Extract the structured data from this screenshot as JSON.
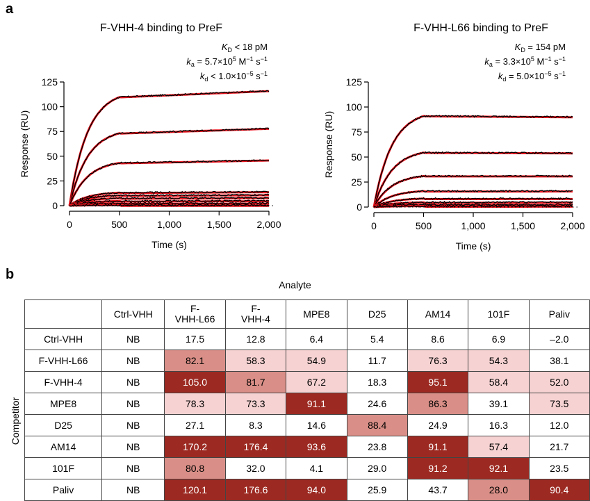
{
  "panels": {
    "a": "a",
    "b": "b"
  },
  "chart_data": [
    {
      "type": "line",
      "title": "F-VHH-4 binding to PreF",
      "xlabel": "Time (s)",
      "ylabel": "Response (RU)",
      "xlim": [
        0,
        2000
      ],
      "ylim": [
        0,
        125
      ],
      "xticks": [
        0,
        500,
        1000,
        1500,
        2000
      ],
      "xtick_labels": [
        "0",
        "500",
        "1,000",
        "1,500",
        "2,000"
      ],
      "yticks": [
        0,
        25,
        50,
        75,
        100,
        125
      ],
      "annotations": {
        "kd_eq": {
          "sym": "K",
          "sub": "D",
          "rest": " < 18 pM"
        },
        "ka": {
          "sym": "k",
          "sub": "a",
          "rest": " = 5.7×10",
          "exp": "5",
          "unit": " M",
          "unit_exp": "−1",
          "unit2": " s",
          "unit2_exp": "−1"
        },
        "kdiss": {
          "sym": "k",
          "sub": "d",
          "rest": " < 1.0×10",
          "exp": "−5",
          "unit2": " s",
          "unit2_exp": "−1"
        }
      },
      "association_end": 500,
      "series": [
        {
          "plateau": 117,
          "end": 116,
          "tau": 180
        },
        {
          "plateau": 78,
          "end": 78,
          "tau": 180
        },
        {
          "plateau": 46,
          "end": 46,
          "tau": 180
        },
        {
          "plateau": 14,
          "end": 14,
          "tau": 180
        },
        {
          "plateau": 11,
          "end": 11,
          "tau": 180
        },
        {
          "plateau": 8,
          "end": 8,
          "tau": 180
        },
        {
          "plateau": 5,
          "end": 5,
          "tau": 180
        },
        {
          "plateau": 2.5,
          "end": 2.5,
          "tau": 180
        },
        {
          "plateau": 0.5,
          "end": 0.5,
          "tau": 180
        }
      ],
      "colors": {
        "data": "#000000",
        "fit": "#e8141e"
      }
    },
    {
      "type": "line",
      "title": "F-VHH-L66 binding to PreF",
      "xlabel": "Time (s)",
      "ylabel": "Response (RU)",
      "xlim": [
        0,
        2000
      ],
      "ylim": [
        0,
        125
      ],
      "xticks": [
        0,
        500,
        1000,
        1500,
        2000
      ],
      "xtick_labels": [
        "0",
        "500",
        "1,000",
        "1,500",
        "2,000"
      ],
      "yticks": [
        0,
        25,
        50,
        75,
        100,
        125
      ],
      "annotations": {
        "kd_eq": {
          "sym": "K",
          "sub": "D",
          "rest": " = 154 pM"
        },
        "ka": {
          "sym": "k",
          "sub": "a",
          "rest": " = 3.3×10",
          "exp": "5",
          "unit": " M",
          "unit_exp": "−1",
          "unit2": " s",
          "unit2_exp": "−1"
        },
        "kdiss": {
          "sym": "k",
          "sub": "d",
          "rest": " = 5.0×10",
          "exp": "−5",
          "unit2": " s",
          "unit2_exp": "−1"
        }
      },
      "association_end": 500,
      "series": [
        {
          "plateau": 97,
          "end": 90,
          "tau": 180
        },
        {
          "plateau": 58,
          "end": 54,
          "tau": 180
        },
        {
          "plateau": 33,
          "end": 31,
          "tau": 180
        },
        {
          "plateau": 17,
          "end": 16,
          "tau": 180
        },
        {
          "plateau": 9,
          "end": 8.5,
          "tau": 180
        },
        {
          "plateau": 5,
          "end": 5,
          "tau": 180
        },
        {
          "plateau": 2.5,
          "end": 2.5,
          "tau": 180
        },
        {
          "plateau": 1,
          "end": 1,
          "tau": 180
        }
      ],
      "colors": {
        "data": "#000000",
        "fit": "#e8141e"
      }
    },
    {
      "type": "table",
      "title": "Analyte",
      "row_axis_label": "Competitor",
      "columns": [
        "",
        "Ctrl-VHH",
        "F-\nVHH-L66",
        "F-\nVHH-4",
        "MPE8",
        "D25",
        "AM14",
        "101F",
        "Paliv"
      ],
      "rows": [
        {
          "label": "Ctrl-VHH",
          "values": [
            "NB",
            "17.5",
            "12.8",
            "6.4",
            "5.4",
            "8.6",
            "6.9",
            "–2.0"
          ],
          "shades": [
            0,
            0,
            0,
            0,
            0,
            0,
            0,
            0
          ]
        },
        {
          "label": "F-VHH-L66",
          "values": [
            "NB",
            "82.1",
            "58.3",
            "54.9",
            "11.7",
            "76.3",
            "54.3",
            "38.1"
          ],
          "shades": [
            0,
            2,
            1,
            1,
            0,
            1,
            1,
            0
          ]
        },
        {
          "label": "F-VHH-4",
          "values": [
            "NB",
            "105.0",
            "81.7",
            "67.2",
            "18.3",
            "95.1",
            "58.4",
            "52.0"
          ],
          "shades": [
            0,
            3,
            2,
            1,
            0,
            3,
            1,
            1
          ]
        },
        {
          "label": "MPE8",
          "values": [
            "NB",
            "78.3",
            "73.3",
            "91.1",
            "24.6",
            "86.3",
            "39.1",
            "73.5"
          ],
          "shades": [
            0,
            1,
            1,
            3,
            0,
            2,
            0,
            1
          ]
        },
        {
          "label": "D25",
          "values": [
            "NB",
            "27.1",
            "8.3",
            "14.6",
            "88.4",
            "24.9",
            "16.3",
            "12.0"
          ],
          "shades": [
            0,
            0,
            0,
            0,
            2,
            0,
            0,
            0
          ]
        },
        {
          "label": "AM14",
          "values": [
            "NB",
            "170.2",
            "176.4",
            "93.6",
            "23.8",
            "91.1",
            "57.4",
            "21.7"
          ],
          "shades": [
            0,
            3,
            3,
            3,
            0,
            3,
            1,
            0
          ]
        },
        {
          "label": "101F",
          "values": [
            "NB",
            "80.8",
            "32.0",
            "4.1",
            "29.0",
            "91.2",
            "92.1",
            "23.5"
          ],
          "shades": [
            0,
            2,
            0,
            0,
            0,
            3,
            3,
            0
          ]
        },
        {
          "label": "Paliv",
          "values": [
            "NB",
            "120.1",
            "176.6",
            "94.0",
            "25.9",
            "43.7",
            "28.0",
            "90.4"
          ],
          "shades": [
            0,
            3,
            3,
            3,
            0,
            0,
            2,
            3
          ]
        }
      ],
      "shade_colors": [
        "#ffffff",
        "#f6d2d2",
        "#d98f87",
        "#9c2a22"
      ],
      "shade_text_colors": [
        "#000000",
        "#000000",
        "#000000",
        "#ffffff"
      ]
    }
  ]
}
